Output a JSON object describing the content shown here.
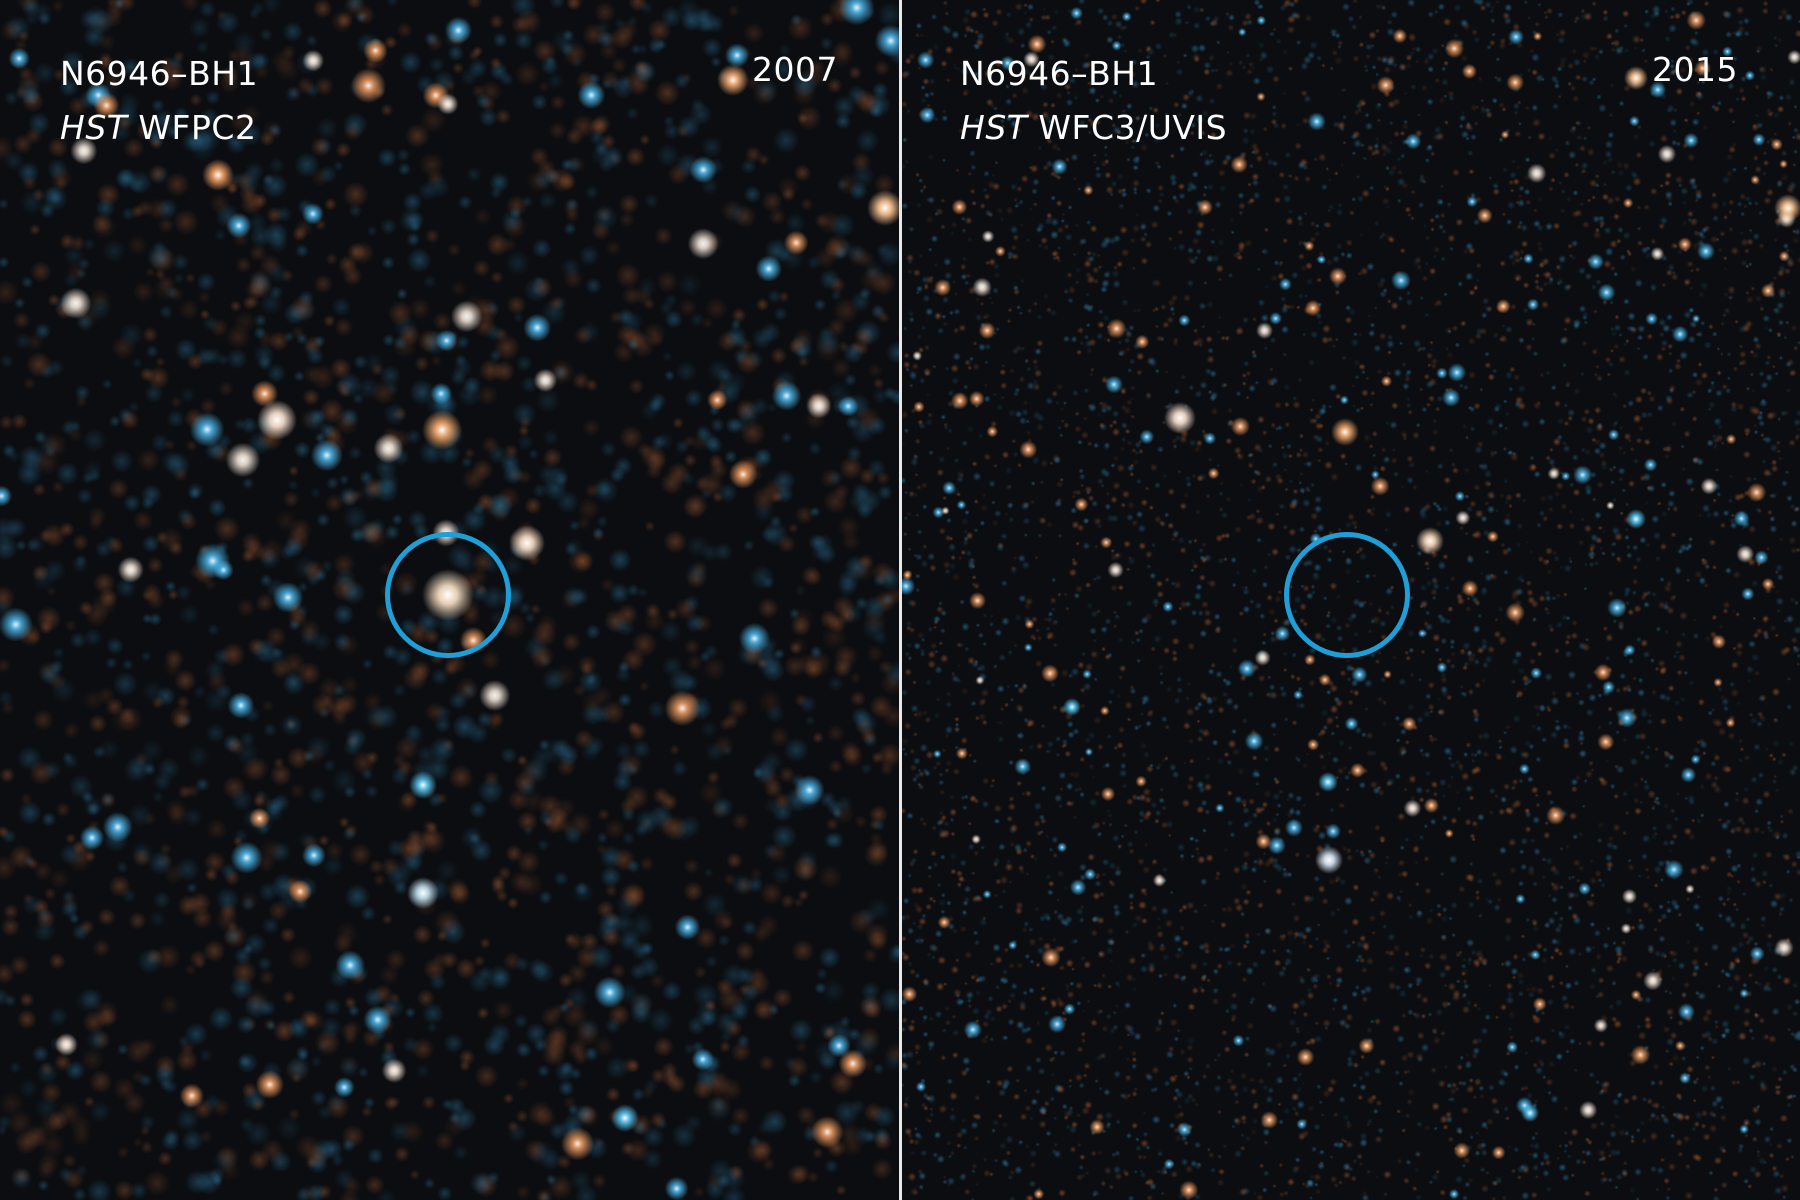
{
  "panels": [
    {
      "object": "N6946–BH1",
      "telescope": "HST",
      "instrument": "WFPC2",
      "year": "2007",
      "blur": "soft"
    },
    {
      "object": "N6946–BH1",
      "telescope": "HST",
      "instrument": "WFC3/UVIS",
      "year": "2015",
      "blur": "sharp"
    }
  ],
  "colors": {
    "circle": "#1e9fd8",
    "blue_stars": "#3aa8e0",
    "orange_stars": "#e08a4a",
    "background": "#0b0d10"
  }
}
